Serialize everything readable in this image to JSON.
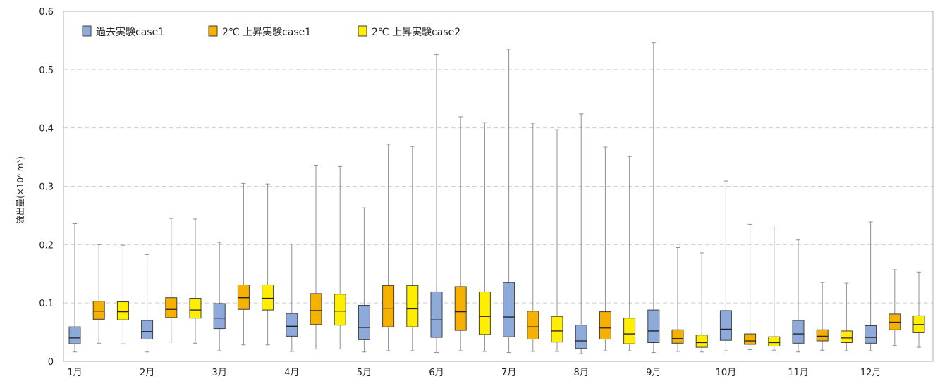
{
  "chart_data": {
    "type": "boxplot",
    "ylabel": "流出量(×10⁶ m³)",
    "ylim": [
      0,
      0.6
    ],
    "yticks": [
      "0",
      "0.1",
      "0.2",
      "0.3",
      "0.4",
      "0.5",
      "0.6"
    ],
    "grid": true,
    "legend_position": "top-left",
    "categories": [
      "1月",
      "2月",
      "3月",
      "4月",
      "5月",
      "6月",
      "7月",
      "8月",
      "9月",
      "10月",
      "11月",
      "12月"
    ],
    "series": [
      {
        "name": "過去実験case1",
        "color": "#8eaadb",
        "boxes": [
          {
            "min": 0.016,
            "q1": 0.03,
            "median": 0.04,
            "q3": 0.059,
            "max": 0.236
          },
          {
            "min": 0.016,
            "q1": 0.038,
            "median": 0.051,
            "q3": 0.07,
            "max": 0.183
          },
          {
            "min": 0.018,
            "q1": 0.056,
            "median": 0.074,
            "q3": 0.099,
            "max": 0.204
          },
          {
            "min": 0.017,
            "q1": 0.043,
            "median": 0.06,
            "q3": 0.082,
            "max": 0.201
          },
          {
            "min": 0.016,
            "q1": 0.037,
            "median": 0.058,
            "q3": 0.096,
            "max": 0.263
          },
          {
            "min": 0.015,
            "q1": 0.041,
            "median": 0.071,
            "q3": 0.119,
            "max": 0.526
          },
          {
            "min": 0.015,
            "q1": 0.042,
            "median": 0.076,
            "q3": 0.135,
            "max": 0.535
          },
          {
            "min": 0.013,
            "q1": 0.022,
            "median": 0.035,
            "q3": 0.062,
            "max": 0.424
          },
          {
            "min": 0.015,
            "q1": 0.032,
            "median": 0.052,
            "q3": 0.088,
            "max": 0.546
          },
          {
            "min": 0.018,
            "q1": 0.036,
            "median": 0.055,
            "q3": 0.087,
            "max": 0.309
          },
          {
            "min": 0.016,
            "q1": 0.031,
            "median": 0.047,
            "q3": 0.07,
            "max": 0.208
          },
          {
            "min": 0.018,
            "q1": 0.031,
            "median": 0.041,
            "q3": 0.061,
            "max": 0.239
          }
        ]
      },
      {
        "name": "2℃ 上昇実験case1",
        "color": "#f5b000",
        "boxes": [
          {
            "min": 0.031,
            "q1": 0.072,
            "median": 0.086,
            "q3": 0.103,
            "max": 0.2
          },
          {
            "min": 0.033,
            "q1": 0.075,
            "median": 0.089,
            "q3": 0.109,
            "max": 0.245
          },
          {
            "min": 0.028,
            "q1": 0.089,
            "median": 0.109,
            "q3": 0.131,
            "max": 0.305
          },
          {
            "min": 0.021,
            "q1": 0.063,
            "median": 0.087,
            "q3": 0.116,
            "max": 0.335
          },
          {
            "min": 0.018,
            "q1": 0.059,
            "median": 0.091,
            "q3": 0.13,
            "max": 0.372
          },
          {
            "min": 0.018,
            "q1": 0.053,
            "median": 0.085,
            "q3": 0.128,
            "max": 0.419
          },
          {
            "min": 0.017,
            "q1": 0.038,
            "median": 0.059,
            "q3": 0.086,
            "max": 0.408
          },
          {
            "min": 0.018,
            "q1": 0.038,
            "median": 0.057,
            "q3": 0.085,
            "max": 0.367
          },
          {
            "min": 0.017,
            "q1": 0.031,
            "median": 0.039,
            "q3": 0.054,
            "max": 0.195
          },
          {
            "min": 0.02,
            "q1": 0.029,
            "median": 0.035,
            "q3": 0.047,
            "max": 0.235
          },
          {
            "min": 0.019,
            "q1": 0.035,
            "median": 0.043,
            "q3": 0.054,
            "max": 0.135
          },
          {
            "min": 0.027,
            "q1": 0.054,
            "median": 0.067,
            "q3": 0.081,
            "max": 0.157
          }
        ]
      },
      {
        "name": "2℃ 上昇実験case2",
        "color": "#ffee00",
        "boxes": [
          {
            "min": 0.03,
            "q1": 0.071,
            "median": 0.085,
            "q3": 0.102,
            "max": 0.199
          },
          {
            "min": 0.031,
            "q1": 0.074,
            "median": 0.088,
            "q3": 0.108,
            "max": 0.244
          },
          {
            "min": 0.028,
            "q1": 0.088,
            "median": 0.108,
            "q3": 0.131,
            "max": 0.304
          },
          {
            "min": 0.021,
            "q1": 0.062,
            "median": 0.086,
            "q3": 0.115,
            "max": 0.334
          },
          {
            "min": 0.018,
            "q1": 0.059,
            "median": 0.09,
            "q3": 0.13,
            "max": 0.368
          },
          {
            "min": 0.017,
            "q1": 0.046,
            "median": 0.077,
            "q3": 0.119,
            "max": 0.409
          },
          {
            "min": 0.017,
            "q1": 0.033,
            "median": 0.052,
            "q3": 0.077,
            "max": 0.397
          },
          {
            "min": 0.018,
            "q1": 0.03,
            "median": 0.047,
            "q3": 0.074,
            "max": 0.351
          },
          {
            "min": 0.016,
            "q1": 0.024,
            "median": 0.032,
            "q3": 0.045,
            "max": 0.186
          },
          {
            "min": 0.019,
            "q1": 0.026,
            "median": 0.032,
            "q3": 0.042,
            "max": 0.23
          },
          {
            "min": 0.018,
            "q1": 0.032,
            "median": 0.04,
            "q3": 0.052,
            "max": 0.134
          },
          {
            "min": 0.024,
            "q1": 0.049,
            "median": 0.063,
            "q3": 0.078,
            "max": 0.153
          }
        ]
      }
    ]
  }
}
